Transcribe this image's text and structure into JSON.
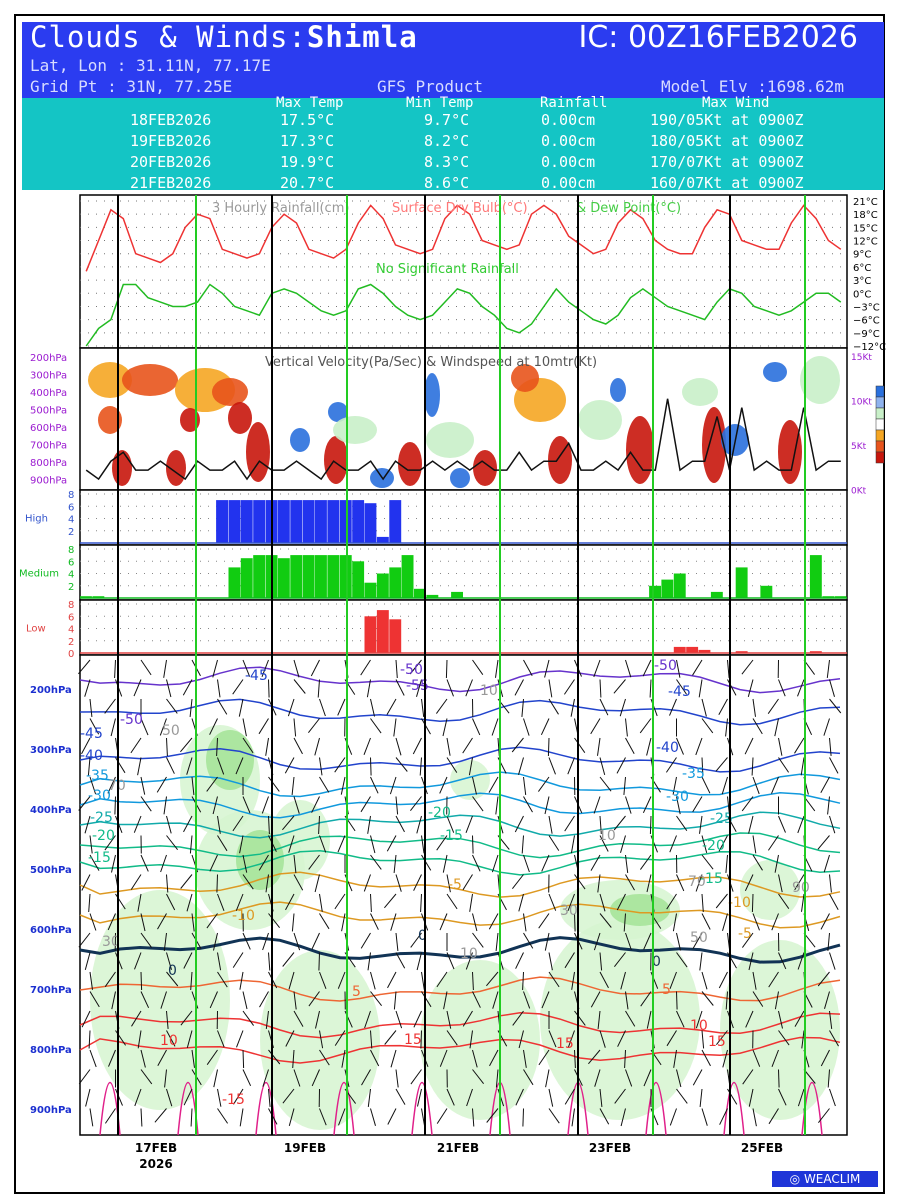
{
  "header": {
    "title_prefix": "Clouds & Winds:",
    "place": "Shimla",
    "ic": "IC: 00Z16FEB2026",
    "latlon": "Lat, Lon : 31.11N, 77.17E",
    "gridpt": "Grid Pt  : 31N, 77.25E",
    "product": "GFS Product",
    "model_elv": "Model Elv :1698.62m"
  },
  "summary": {
    "columns": [
      "Max Temp",
      "Min Temp",
      "Rainfall",
      "Max Wind"
    ],
    "rows": [
      {
        "date": "18FEB2026",
        "max": "17.5°C",
        "min": "9.7°C",
        "rain": "0.00cm",
        "wind": "190/05Kt at 0900Z"
      },
      {
        "date": "19FEB2026",
        "max": "17.3°C",
        "min": "8.2°C",
        "rain": "0.00cm",
        "wind": "180/05Kt at 0900Z"
      },
      {
        "date": "20FEB2026",
        "max": "19.9°C",
        "min": "8.3°C",
        "rain": "0.00cm",
        "wind": "170/07Kt at 0900Z"
      },
      {
        "date": "21FEB2026",
        "max": "20.7°C",
        "min": "8.6°C",
        "rain": "0.00cm",
        "wind": "160/07Kt at 0900Z"
      }
    ]
  },
  "brand": "WEACLIM",
  "colors": {
    "header": "#2b3cf0",
    "summary": "#14c5c5",
    "dry_bulb": "#ee3333",
    "dew_point": "#22bb22",
    "high": "#2233ee",
    "medium": "#11cc11",
    "low": "#ee3333"
  },
  "chart_data": [
    {
      "type": "line",
      "title": "3 Hourly Rainfall(cm)  Surface Dry Bulb(°C)  & Dew Point(°C)",
      "title_parts": [
        "3 Hourly Rainfall(cm)",
        "Surface Dry Bulb(°C)",
        "& Dew Point(°C)"
      ],
      "annotation": "No Significant Rainfall",
      "yticks": [
        "21°C",
        "18°C",
        "15°C",
        "12°C",
        "9°C",
        "6°C",
        "3°C",
        "0°C",
        "−3°C",
        "−6°C",
        "−9°C",
        "−12°C"
      ],
      "ylim": [
        -12,
        21
      ],
      "series": [
        {
          "name": "Surface Dry Bulb(°C)",
          "values": [
            5,
            12,
            19,
            17,
            9,
            8,
            7,
            9,
            15,
            18,
            17,
            10,
            9,
            8,
            9,
            15,
            18,
            16,
            10,
            9,
            8,
            10,
            16,
            20,
            17,
            11,
            10,
            9,
            10,
            17,
            20,
            18,
            12,
            11,
            10,
            11,
            18,
            20,
            18,
            13,
            11,
            9,
            10,
            16,
            19,
            17,
            12,
            10,
            9,
            9,
            15,
            19,
            18,
            12,
            11,
            10,
            10,
            16,
            20,
            17,
            12,
            10
          ]
        },
        {
          "name": "Dew Point(°C)",
          "values": [
            -12,
            -8,
            -6,
            2,
            2,
            -1,
            -2,
            -3,
            -3,
            -2,
            2,
            0,
            -3,
            -4,
            -5,
            0,
            1,
            0,
            -2,
            -4,
            -5,
            -4,
            1,
            2,
            0,
            -3,
            -5,
            -6,
            -5,
            -2,
            1,
            0,
            -3,
            -5,
            -8,
            -9,
            -7,
            -3,
            1,
            -2,
            -4,
            -6,
            -7,
            -5,
            -1,
            1,
            -1,
            -3,
            -4,
            -5,
            -6,
            -2,
            1,
            0,
            -3,
            -4,
            -5,
            -4,
            -2,
            0,
            0,
            -2
          ]
        }
      ]
    },
    {
      "type": "heatmap",
      "title": "Vertical Velocity(Pa/Sec) & Windspeed at 10mtr(Kt)",
      "y_left": [
        "200hPa",
        "300hPa",
        "400hPa",
        "500hPa",
        "600hPa",
        "700hPa",
        "800hPa",
        "900hPa"
      ],
      "y_right": [
        "15Kt",
        "10Kt",
        "5Kt",
        "0Kt"
      ],
      "wind10m_kt": [
        2,
        1,
        3,
        4,
        2,
        2,
        3,
        2,
        1,
        3,
        2,
        2,
        3,
        1,
        3,
        2,
        2,
        3,
        2,
        1,
        3,
        2,
        2,
        3,
        1,
        3,
        2,
        2,
        3,
        2,
        3,
        2,
        3,
        2,
        2,
        4,
        2,
        3,
        3,
        5,
        2,
        2,
        3,
        2,
        4,
        2,
        2,
        10,
        2,
        3,
        3,
        8,
        2,
        9,
        2,
        3,
        2,
        2,
        9,
        2,
        3,
        3
      ]
    },
    {
      "type": "bar",
      "title": "High",
      "yticks": [
        "8",
        "6",
        "4",
        "2"
      ],
      "ylim": [
        0,
        8
      ],
      "values": [
        0,
        0,
        0,
        0,
        0,
        0,
        0,
        0,
        0,
        0,
        0,
        7,
        7,
        7,
        7,
        7,
        7,
        7,
        7,
        7,
        7,
        7,
        7,
        6.5,
        1,
        7,
        0,
        0,
        0,
        0,
        0,
        0,
        0,
        0,
        0,
        0,
        0,
        0,
        0,
        0,
        0,
        0,
        0,
        0,
        0,
        0,
        0,
        0,
        0,
        0,
        0,
        0,
        0,
        0,
        0,
        0,
        0,
        0,
        0,
        0,
        0,
        0
      ]
    },
    {
      "type": "bar",
      "title": "Medium",
      "yticks": [
        "8",
        "6",
        "4",
        "2"
      ],
      "ylim": [
        0,
        8
      ],
      "values": [
        0.3,
        0.3,
        0,
        0,
        0,
        0,
        0,
        0,
        0,
        0,
        0,
        0,
        5,
        6.5,
        7,
        7,
        6.5,
        7,
        7,
        7,
        7,
        7,
        6,
        2.5,
        4,
        5,
        7,
        1.5,
        0.5,
        0,
        1,
        0,
        0,
        0,
        0,
        0,
        0,
        0,
        0,
        0,
        0,
        0,
        0,
        0,
        0,
        0,
        2,
        3,
        4,
        0,
        0,
        1,
        0,
        5,
        0,
        2,
        0,
        0,
        0,
        7,
        0.3,
        0.3
      ]
    },
    {
      "type": "bar",
      "title": "Low",
      "yticks": [
        "8",
        "6",
        "4",
        "2",
        "0"
      ],
      "ylim": [
        0,
        8
      ],
      "values": [
        0,
        0,
        0,
        0,
        0,
        0,
        0,
        0,
        0,
        0,
        0,
        0,
        0,
        0,
        0,
        0,
        0,
        0,
        0,
        0,
        0,
        0,
        0,
        6,
        7,
        5.5,
        0,
        0,
        0,
        0,
        0,
        0,
        0,
        0,
        0,
        0,
        0,
        0,
        0,
        0,
        0,
        0,
        0,
        0,
        0,
        0,
        0,
        0,
        1,
        1,
        0.5,
        0,
        0,
        0.3,
        0,
        0,
        0,
        0,
        0,
        0.3,
        0,
        0
      ]
    },
    {
      "type": "heatmap",
      "title": "",
      "y_left": [
        "200hPa",
        "300hPa",
        "400hPa",
        "500hPa",
        "600hPa",
        "700hPa",
        "800hPa",
        "900hPa"
      ],
      "x_labels": [
        "17FEB",
        "19FEB",
        "21FEB",
        "23FEB",
        "25FEB"
      ],
      "x_sub_label": "2026",
      "contour_labels": [
        {
          "text": "-45",
          "color": "#2244cc"
        },
        {
          "text": "-50",
          "color": "#6633cc"
        },
        {
          "text": "-55",
          "color": "#6633cc"
        },
        {
          "text": "-50",
          "color": "#6633cc"
        },
        {
          "text": "-45",
          "color": "#2244cc"
        },
        {
          "text": "-45",
          "color": "#2244cc"
        },
        {
          "text": "-50",
          "color": "#6633cc"
        },
        {
          "text": "-40",
          "color": "#2244cc"
        },
        {
          "text": "-40",
          "color": "#2244cc"
        },
        {
          "text": "-35",
          "color": "#1199dd"
        },
        {
          "text": "-35",
          "color": "#1199dd"
        },
        {
          "text": "-30",
          "color": "#1199dd"
        },
        {
          "text": "-30",
          "color": "#1199dd"
        },
        {
          "text": "-25",
          "color": "#11aaaa"
        },
        {
          "text": "-25",
          "color": "#11aaaa"
        },
        {
          "text": "-20",
          "color": "#11bb88"
        },
        {
          "text": "-20",
          "color": "#11bb88"
        },
        {
          "text": "-20",
          "color": "#11bb88"
        },
        {
          "text": "-15",
          "color": "#11bb88"
        },
        {
          "text": "-15",
          "color": "#11bb88"
        },
        {
          "text": "-15",
          "color": "#11bb88"
        },
        {
          "text": "-5",
          "color": "#dd9922"
        },
        {
          "text": "-10",
          "color": "#dd9922"
        },
        {
          "text": "-10",
          "color": "#dd9922"
        },
        {
          "text": "-5",
          "color": "#dd9922"
        },
        {
          "text": "0",
          "color": "#113355"
        },
        {
          "text": "0",
          "color": "#113355"
        },
        {
          "text": "0",
          "color": "#113355"
        },
        {
          "text": "5",
          "color": "#ee6633"
        },
        {
          "text": "5",
          "color": "#ee6633"
        },
        {
          "text": "10",
          "color": "#ee3333"
        },
        {
          "text": "10",
          "color": "#ee3333"
        },
        {
          "text": "15",
          "color": "#ee3333"
        },
        {
          "text": "15",
          "color": "#ee3333"
        },
        {
          "text": "15",
          "color": "#ee3333"
        },
        {
          "text": "-15",
          "color": "#ee3333"
        },
        {
          "text": "30",
          "color": "#999999"
        },
        {
          "text": "70",
          "color": "#999999"
        },
        {
          "text": "50",
          "color": "#999999"
        },
        {
          "text": "10",
          "color": "#999999"
        },
        {
          "text": "30",
          "color": "#999999"
        },
        {
          "text": "70",
          "color": "#999999"
        },
        {
          "text": "50",
          "color": "#999999"
        },
        {
          "text": "90",
          "color": "#999999"
        },
        {
          "text": "10",
          "color": "#999999"
        },
        {
          "text": "10",
          "color": "#999999"
        }
      ]
    }
  ]
}
